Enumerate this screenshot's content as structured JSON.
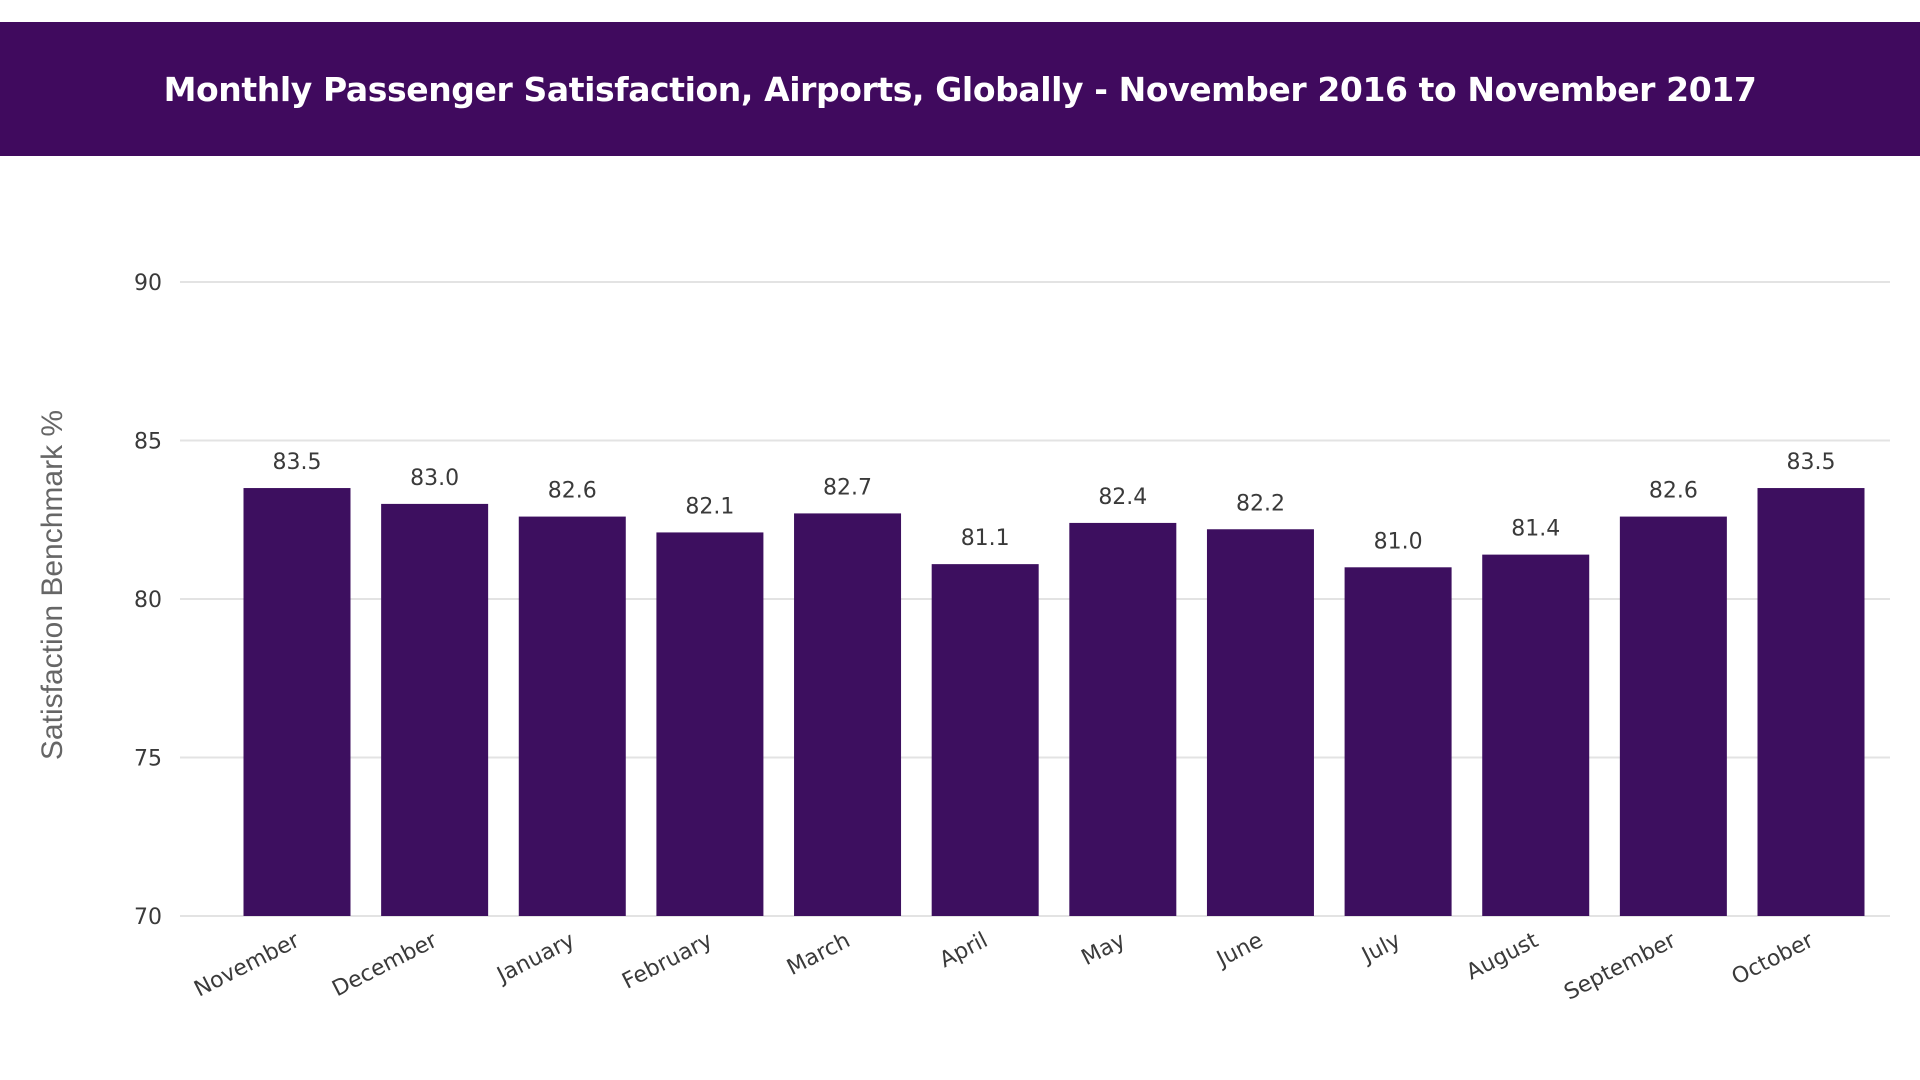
{
  "colors": {
    "banner": "#400a5e",
    "bar": "#3d0f5f",
    "gridline": "#e3e3e3",
    "text": "#3a3a3a",
    "axis_label": "#666666",
    "title_text": "#ffffff"
  },
  "chart_data": {
    "type": "bar",
    "title": "Monthly Passenger Satisfaction, Airports, Globally - November 2016 to November 2017",
    "xlabel": "",
    "ylabel": "Satisfaction Benchmark %",
    "categories": [
      "November",
      "December",
      "January",
      "February",
      "March",
      "April",
      "May",
      "June",
      "July",
      "August",
      "September",
      "October"
    ],
    "values": [
      83.5,
      83.0,
      82.6,
      82.1,
      82.7,
      81.1,
      82.4,
      82.2,
      81.0,
      81.4,
      82.6,
      83.5
    ],
    "data_labels": [
      "83.5",
      "83.0",
      "82.6",
      "82.1",
      "82.7",
      "81.1",
      "82.4",
      "82.2",
      "81.0",
      "81.4",
      "82.6",
      "83.5"
    ],
    "ylim": [
      70,
      90
    ],
    "yticks": [
      70,
      75,
      80,
      85,
      90
    ],
    "ytick_labels": [
      "70",
      "75",
      "80",
      "85",
      "90"
    ],
    "grid": true,
    "legend": "none"
  }
}
